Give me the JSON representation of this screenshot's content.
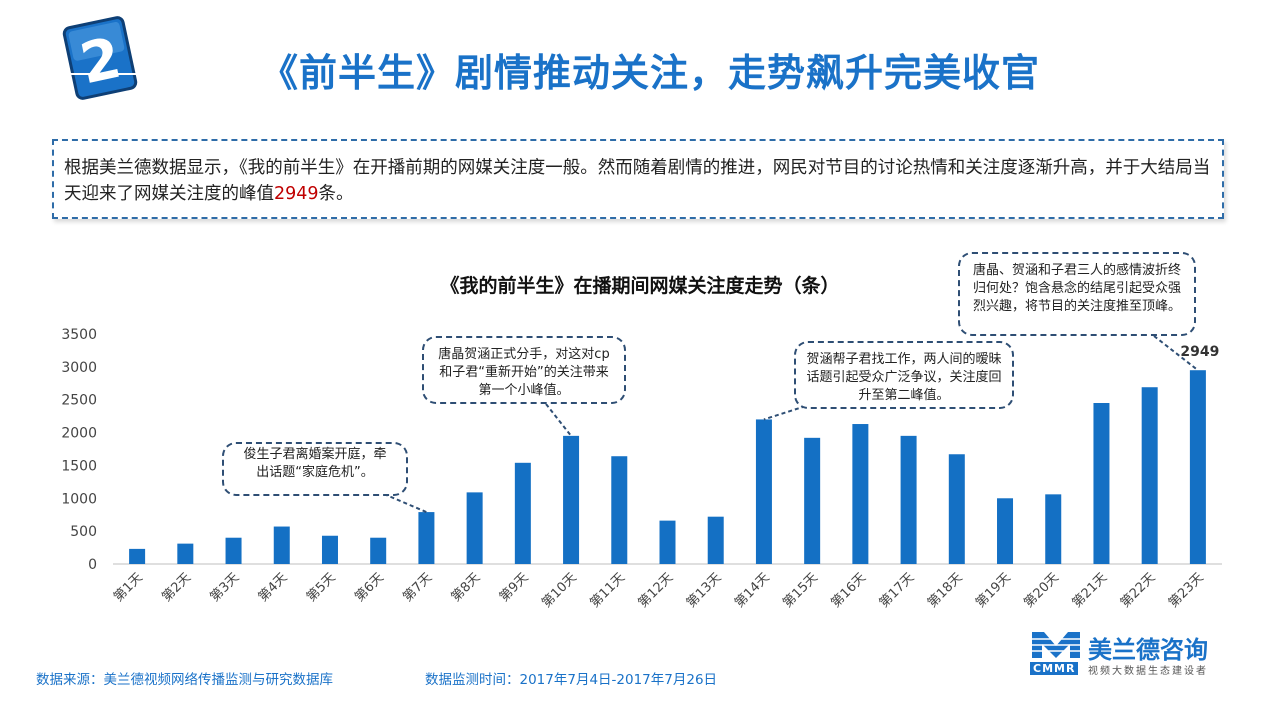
{
  "header": {
    "badge_number": "2",
    "title": "《前半生》剧情推动关注，走势飙升完美收官"
  },
  "intro": {
    "text_before": "根据美兰德数据显示，《我的前半生》在开播前期的网媒关注度一般。然而随着剧情的推进，网民对节目的讨论热情和关注度逐渐升高，并于大结局当天迎来了网媒关注度的峰值",
    "highlight_value": "2949",
    "text_after": "条。"
  },
  "chart_data": {
    "type": "bar",
    "title": "《我的前半生》在播期间网媒关注度走势（条）",
    "categories": [
      "第1天",
      "第2天",
      "第3天",
      "第4天",
      "第5天",
      "第6天",
      "第7天",
      "第8天",
      "第9天",
      "第10天",
      "第11天",
      "第12天",
      "第13天",
      "第14天",
      "第15天",
      "第16天",
      "第17天",
      "第18天",
      "第19天",
      "第20天",
      "第21天",
      "第22天",
      "第23天"
    ],
    "values": [
      230,
      310,
      400,
      570,
      430,
      400,
      790,
      1090,
      1540,
      1950,
      1640,
      660,
      720,
      2200,
      1920,
      2130,
      1950,
      1670,
      1000,
      1060,
      2450,
      2690,
      2949
    ],
    "ylim": [
      0,
      3500
    ],
    "yticks": [
      "0",
      "500",
      "1000",
      "1500",
      "2000",
      "2500",
      "3000",
      "3500"
    ],
    "data_label": {
      "index": 22,
      "text": "2949"
    },
    "bar_color": "#1470c4",
    "grid": false,
    "legend": "none"
  },
  "annotations": [
    {
      "target_index": 6,
      "text": "俊生子君离婚案开庭，牵出话题“家庭危机”。"
    },
    {
      "target_index": 9,
      "text": "唐晶贺涵正式分手，对这对cp和子君“重新开始”的关注带来第一个小峰值。"
    },
    {
      "target_index": 13,
      "text": "贺涵帮子君找工作，两人间的暧昧话题引起受众广泛争议，关注度回升至第二峰值。"
    },
    {
      "target_index": 22,
      "text": "唐晶、贺涵和子君三人的感情波折终归何处？饱含悬念的结尾引起受众强烈兴趣，将节目的关注度推至顶峰。"
    }
  ],
  "footer": {
    "source": "数据来源：美兰德视频网络传播监测与研究数据库",
    "time": "数据监测时间：2017年7月4日-2017年7月26日"
  },
  "logo": {
    "name": "美兰德咨询",
    "abbr": "CMMR",
    "tagline": "视频大数据生态建设者"
  }
}
